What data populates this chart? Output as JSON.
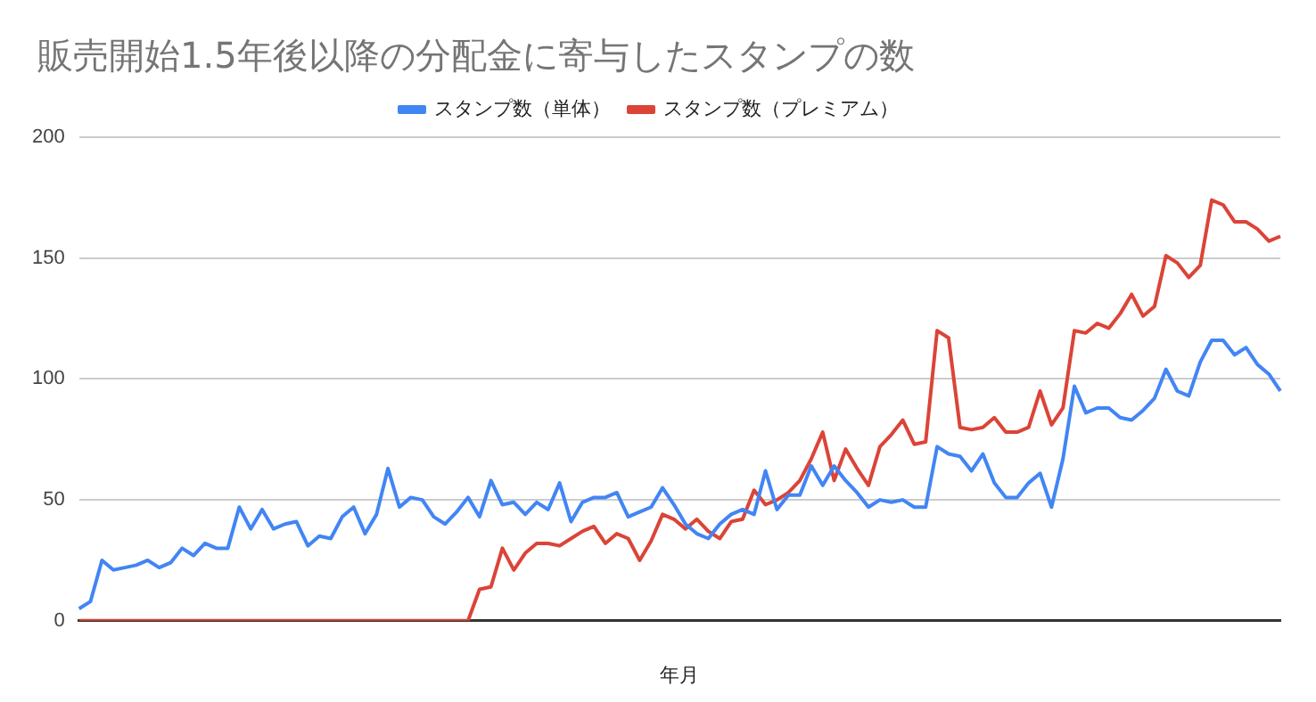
{
  "chart_data": {
    "type": "line",
    "title": "販売開始1.5年後以降の分配金に寄与したスタンプの数",
    "xlabel": "年月",
    "categories": [
      null,
      null,
      null,
      null,
      null,
      null,
      null,
      null,
      null,
      null,
      null,
      null,
      null,
      null,
      null,
      null,
      null,
      null,
      null,
      null,
      null,
      null,
      null,
      null,
      null,
      null,
      null,
      null,
      null,
      null,
      null,
      null,
      null,
      null,
      null,
      null,
      null,
      null,
      null,
      null,
      null,
      null,
      null,
      null,
      null,
      null,
      null,
      null,
      null,
      null,
      null,
      null,
      null,
      null,
      null,
      null,
      null,
      null,
      null,
      null,
      null,
      null,
      null,
      null,
      null,
      null,
      null,
      null,
      null,
      null,
      null,
      null,
      null,
      null,
      null,
      null,
      null,
      null,
      null,
      null,
      null,
      null,
      null,
      null,
      null,
      null,
      null,
      null,
      null,
      null,
      null,
      null,
      null,
      null,
      null,
      null,
      null,
      null,
      null,
      null,
      null,
      null,
      null,
      null,
      null,
      null
    ],
    "series": [
      {
        "name": "スタンプ数（単体）",
        "color": "#4285f4",
        "values": [
          5,
          8,
          25,
          21,
          22,
          23,
          25,
          22,
          24,
          30,
          27,
          32,
          30,
          30,
          47,
          38,
          46,
          38,
          40,
          41,
          31,
          35,
          34,
          43,
          47,
          36,
          44,
          63,
          47,
          51,
          50,
          43,
          40,
          45,
          51,
          43,
          58,
          48,
          49,
          44,
          49,
          46,
          57,
          41,
          49,
          51,
          51,
          53,
          43,
          45,
          47,
          55,
          48,
          40,
          36,
          34,
          40,
          44,
          46,
          44,
          62,
          46,
          52,
          52,
          64,
          56,
          64,
          58,
          53,
          47,
          50,
          49,
          50,
          47,
          47,
          72,
          69,
          68,
          62,
          69,
          57,
          51,
          51,
          57,
          61,
          47,
          67,
          97,
          86,
          88,
          88,
          84,
          83,
          87,
          92,
          104,
          95,
          93,
          107,
          116,
          116,
          110,
          113,
          106,
          102,
          95
        ]
      },
      {
        "name": "スタンプ数（プレミアム）",
        "color": "#db4437",
        "values": [
          0,
          0,
          0,
          0,
          0,
          0,
          0,
          0,
          0,
          0,
          0,
          0,
          0,
          0,
          0,
          0,
          0,
          0,
          0,
          0,
          0,
          0,
          0,
          0,
          0,
          0,
          0,
          0,
          0,
          0,
          0,
          0,
          0,
          0,
          0,
          13,
          14,
          30,
          21,
          28,
          32,
          32,
          31,
          34,
          37,
          39,
          32,
          36,
          34,
          25,
          33,
          44,
          42,
          38,
          42,
          37,
          34,
          41,
          42,
          54,
          48,
          50,
          53,
          58,
          67,
          78,
          58,
          71,
          63,
          56,
          72,
          77,
          83,
          73,
          74,
          120,
          117,
          80,
          79,
          80,
          84,
          78,
          78,
          80,
          95,
          81,
          88,
          120,
          119,
          123,
          121,
          127,
          135,
          126,
          130,
          151,
          148,
          142,
          147,
          174,
          172,
          165,
          165,
          162,
          157,
          159
        ]
      }
    ],
    "ylim": [
      0,
      200
    ],
    "yticks": [
      0,
      50,
      100,
      150,
      200
    ],
    "grid": "y",
    "legend": "top",
    "marker": "none",
    "line_style": "solid"
  }
}
